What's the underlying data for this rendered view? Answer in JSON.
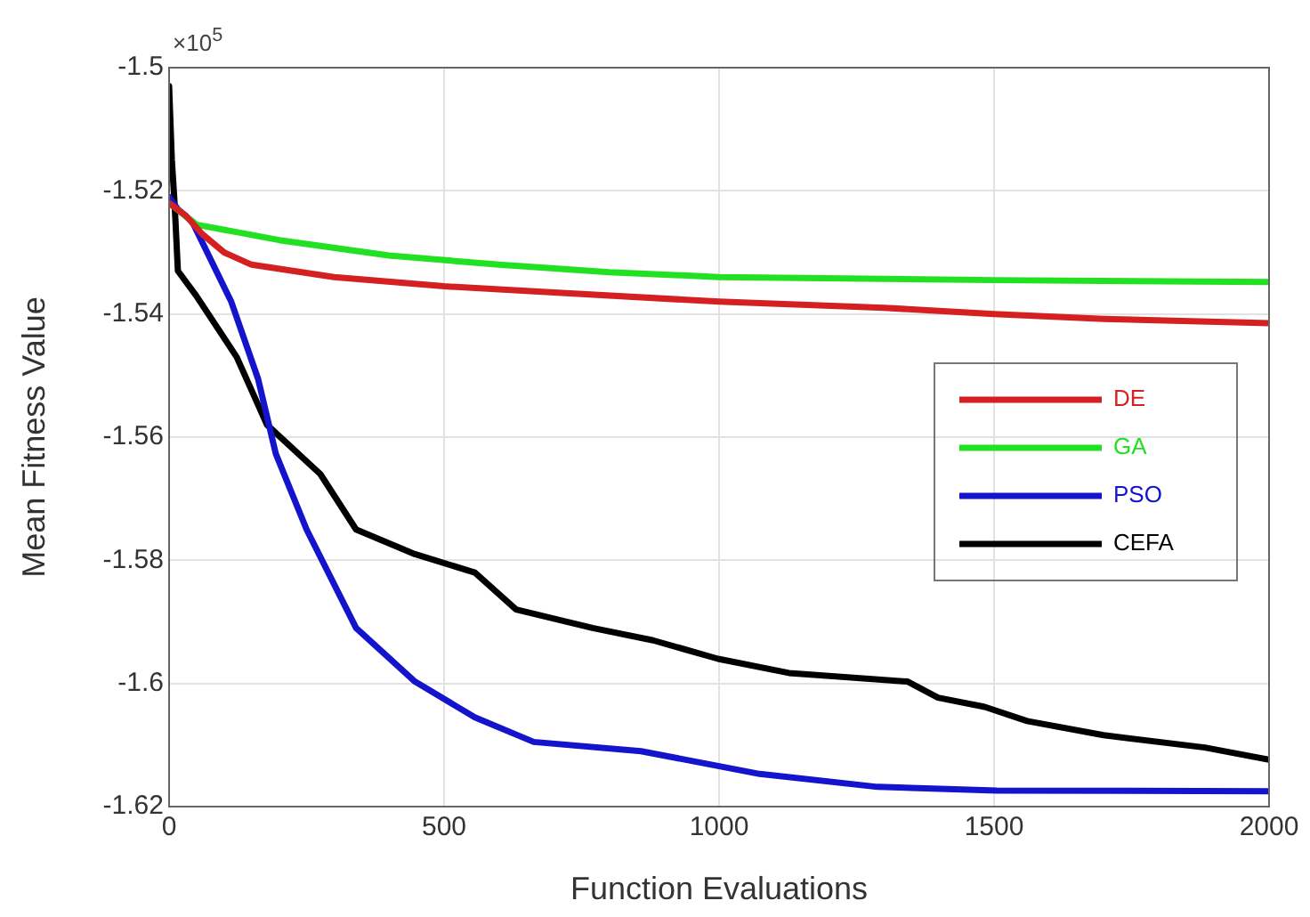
{
  "chart_data": {
    "type": "line",
    "xlabel": "Function Evaluations",
    "ylabel": "Mean Fitness Value",
    "annotations": [
      "×10$^{5}$"
    ],
    "xlim": [
      0,
      2000
    ],
    "xticks": [
      0,
      500,
      1000,
      1500,
      2000
    ],
    "ylim": [
      -1.62,
      -1.5
    ],
    "yticks": [
      -1.62,
      -1.6,
      -1.58,
      -1.56,
      -1.54,
      -1.52,
      -1.5
    ],
    "grid": true,
    "legend": "right",
    "marker": "none",
    "line_style": "solid",
    "series": [
      {
        "name": "DE",
        "color": "#d42020",
        "x": [
          0,
          30,
          60,
          100,
          150,
          300,
          500,
          700,
          1000,
          1300,
          1500,
          1700,
          2000
        ],
        "values": [
          -1.522,
          -1.524,
          -1.527,
          -1.53,
          -1.532,
          -1.534,
          -1.5355,
          -1.5365,
          -1.538,
          -1.539,
          -1.54,
          -1.5408,
          -1.5415
        ]
      },
      {
        "name": "GA",
        "color": "#22e022",
        "x": [
          0,
          50,
          200,
          400,
          600,
          800,
          1000,
          1500,
          2000
        ],
        "values": [
          -1.522,
          -1.5255,
          -1.528,
          -1.5305,
          -1.532,
          -1.5332,
          -1.534,
          -1.5345,
          -1.5348
        ]
      },
      {
        "name": "PSO",
        "color": "#1414cc",
        "x": [
          0,
          16,
          42,
          113,
          162,
          194,
          250,
          340,
          447,
          556,
          663,
          858,
          1074,
          1288,
          1505,
          2000
        ],
        "values": [
          -1.521,
          -1.523,
          -1.525,
          -1.538,
          -1.5506,
          -1.5627,
          -1.575,
          -1.591,
          -1.5997,
          -1.6055,
          -1.6095,
          -1.611,
          -1.6147,
          -1.6168,
          -1.6174,
          -1.6175
        ]
      },
      {
        "name": "CEFA",
        "color": "#000000",
        "x": [
          0,
          5,
          10,
          16,
          49,
          123,
          178,
          275,
          340,
          447,
          556,
          631,
          770,
          880,
          998,
          1127,
          1343,
          1398,
          1483,
          1560,
          1699,
          1883,
          2000
        ],
        "values": [
          -1.503,
          -1.515,
          -1.522,
          -1.533,
          -1.537,
          -1.547,
          -1.558,
          -1.566,
          -1.575,
          -1.579,
          -1.582,
          -1.588,
          -1.591,
          -1.593,
          -1.596,
          -1.5983,
          -1.5997,
          -1.6023,
          -1.6038,
          -1.6061,
          -1.6084,
          -1.6104,
          -1.6124
        ]
      }
    ]
  }
}
